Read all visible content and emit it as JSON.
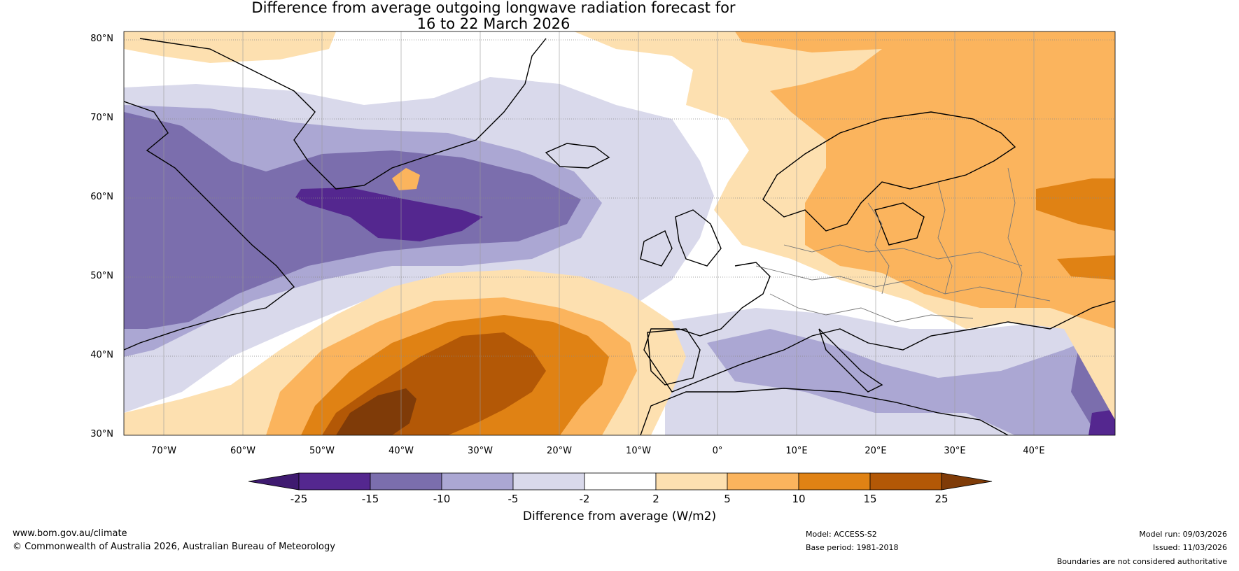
{
  "title": {
    "line1": "Difference from average outgoing longwave radiation forecast for",
    "line2": "16 to 22 March 2026"
  },
  "axes": {
    "lat_labels": [
      "80°N",
      "70°N",
      "60°N",
      "50°N",
      "40°N",
      "30°N"
    ],
    "lon_labels": [
      "70°W",
      "60°W",
      "50°W",
      "40°W",
      "30°W",
      "20°W",
      "10°W",
      "0°",
      "10°E",
      "20°E",
      "30°E",
      "40°E"
    ]
  },
  "colorbar": {
    "ticks": [
      "-25",
      "-15",
      "-10",
      "-5",
      "-2",
      "2",
      "5",
      "10",
      "15",
      "25"
    ],
    "colors": [
      "#3f1a70",
      "#54278f",
      "#7b6ead",
      "#aba7d3",
      "#d9d9eb",
      "#ffffff",
      "#fde0b0",
      "#fbb45d",
      "#e08214",
      "#b35806",
      "#7f3b08"
    ],
    "label": "Difference from average (W/m2)"
  },
  "footer": {
    "url": "www.bom.gov.au/climate",
    "copyright": "© Commonwealth of Australia 2026, Australian Bureau of Meteorology",
    "model": "Model: ACCESS-S2",
    "base_period": "Base period: 1981-2018",
    "model_run": "Model run: 09/03/2026",
    "issued": "Issued: 11/03/2026",
    "disclaimer": "Boundaries are not considered authoritative"
  }
}
